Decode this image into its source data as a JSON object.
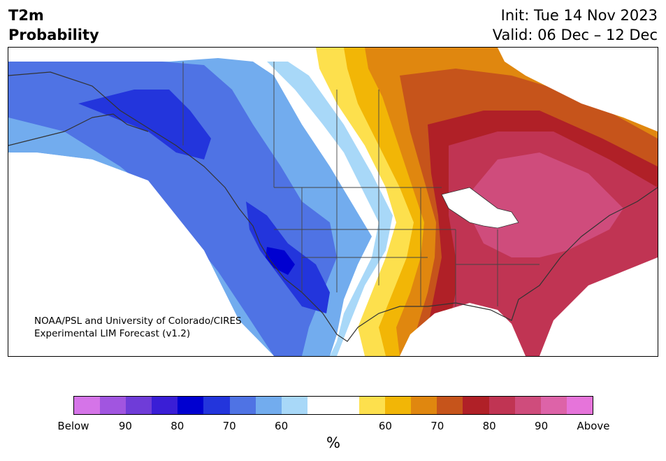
{
  "header": {
    "variable": "T2m",
    "product": "Probability",
    "init": "Init: Tue 14 Nov 2023",
    "valid": "Valid: 06 Dec – 12 Dec"
  },
  "credit": {
    "line1": "NOAA/PSL and University of Colorado/CIRES",
    "line2": "Experimental LIM Forecast (v1.2)"
  },
  "colorbar": {
    "unit": "%",
    "colors": [
      "#d574e8",
      "#a155e0",
      "#6f3cd8",
      "#3a1ed6",
      "#0000d0",
      "#2335dc",
      "#4f73e4",
      "#72acee",
      "#a8d8f8",
      "#ffffff",
      "#ffffff",
      "#fde04d",
      "#f2b606",
      "#e0870f",
      "#c6541b",
      "#b02027",
      "#c03453",
      "#cf4c7c",
      "#dd63a8",
      "#e674da"
    ],
    "tick_labels": [
      "Below",
      "90",
      "80",
      "70",
      "60",
      "60",
      "70",
      "80",
      "90",
      "Above"
    ]
  },
  "map_colors": {
    "below_90": "#3a1ed6",
    "below_80": "#0000d0",
    "below_70": "#2335dc",
    "below_60a": "#4f73e4",
    "below_60b": "#72acee",
    "below_50": "#a8d8f8",
    "neutral": "#ffffff",
    "above_50": "#fde04d",
    "above_60": "#f2b606",
    "above_65": "#e0870f",
    "above_70": "#c6541b",
    "above_80": "#b02027",
    "above_85": "#c03453",
    "above_90": "#cf4c7c"
  }
}
